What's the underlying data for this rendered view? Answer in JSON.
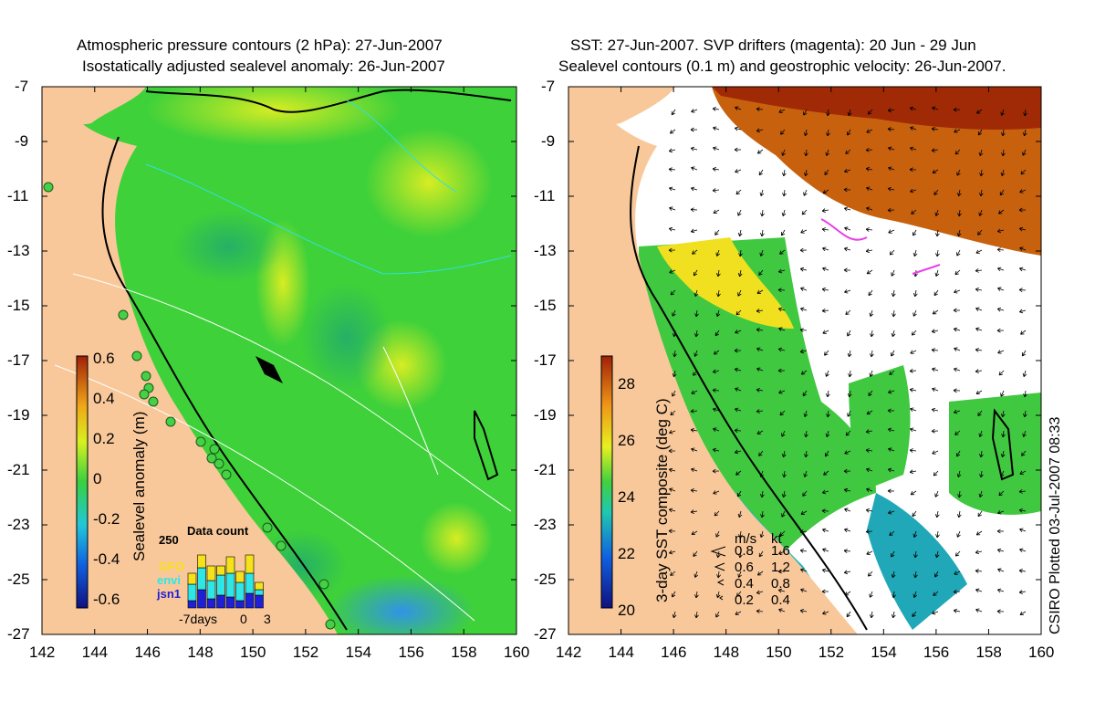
{
  "left_panel": {
    "title_line1": "Atmospheric pressure contours (2 hPa): 27-Jun-2007",
    "title_line2": "Isostatically adjusted sealevel anomaly: 26-Jun-2007",
    "colorbar_label": "Sealevel anomaly (m)",
    "colorbar_ticks": [
      "0.6",
      "0.4",
      "0.2",
      "0",
      "-0.2",
      "-0.4",
      "-0.6"
    ],
    "inset": {
      "title": "Data count",
      "max_label": "250",
      "x_ticks": [
        "-7days",
        "0",
        "3"
      ],
      "legend": [
        {
          "label": "GFO",
          "color": "#f5e21a"
        },
        {
          "label": "envi",
          "color": "#2ee6e6"
        },
        {
          "label": "jsn1",
          "color": "#1f1fd6"
        }
      ]
    }
  },
  "right_panel": {
    "title_line1": "SST: 27-Jun-2007. SVP drifters (magenta): 20 Jun - 29 Jun",
    "title_line2": "Sealevel contours (0.1 m) and geostrophic velocity: 26-Jun-2007.",
    "colorbar_label": "3-day SST composite (deg C)",
    "colorbar_ticks": [
      "28",
      "26",
      "24",
      "22",
      "20"
    ],
    "speed_legend": {
      "header_ms": "m/s",
      "header_kt": "kt",
      "rows": [
        {
          "ms": "0.8",
          "kt": "1.6"
        },
        {
          "ms": "0.6",
          "kt": "1.2"
        },
        {
          "ms": "0.4",
          "kt": "0.8"
        },
        {
          "ms": "0.2",
          "kt": "0.4"
        }
      ]
    }
  },
  "y_ticks": [
    "-7",
    "-9",
    "-11",
    "-13",
    "-15",
    "-17",
    "-19",
    "-21",
    "-23",
    "-25",
    "-27"
  ],
  "x_ticks": [
    "142",
    "144",
    "146",
    "148",
    "150",
    "152",
    "154",
    "156",
    "158",
    "160"
  ],
  "credit": "CSIRO Plotted 03-Jul-2007 08:33",
  "colors": {
    "land": "#f8c89a",
    "sla_main": "#3fd13a",
    "sst_warm": "#a02a06",
    "drifter": "#e83ee8"
  }
}
